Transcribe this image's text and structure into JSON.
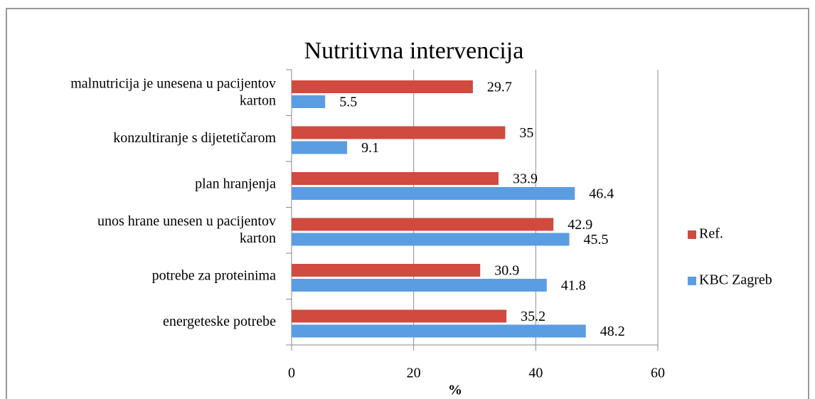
{
  "chart_data": {
    "type": "hbar",
    "title": "Nutritivna intervencija",
    "x_label": "%",
    "categories": [
      "malnutricija je unesena u pacijentov\nkarton",
      "konzultiranje s dijetetičarom",
      "plan hranjenja",
      "unos hrane unesen u pacijentov\nkarton",
      "potrebe za proteinima",
      "energeteske potrebe"
    ],
    "series": [
      {
        "name": "Ref.",
        "color": "#d04a3f",
        "values": [
          29.7,
          35,
          33.9,
          42.9,
          30.9,
          35.2
        ]
      },
      {
        "name": "KBC Zagreb",
        "color": "#5b9de2",
        "values": [
          5.5,
          9.1,
          46.4,
          45.5,
          41.8,
          48.2
        ]
      }
    ],
    "xlim": [
      0,
      60
    ],
    "xticks": [
      0,
      20,
      40,
      60
    ],
    "grid": true,
    "legend": "right"
  }
}
